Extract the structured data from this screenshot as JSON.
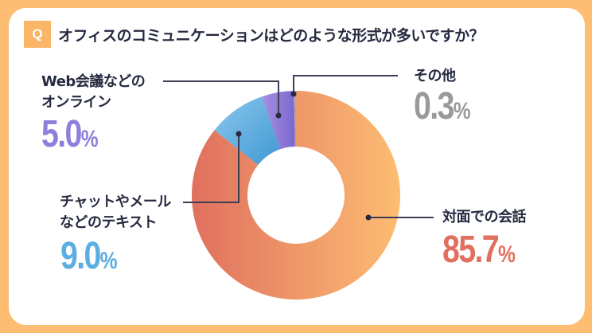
{
  "question": {
    "badge": "Q",
    "title": "オフィスのコミュニケーションはどのような形式が多いですか？"
  },
  "chart_data": {
    "type": "pie",
    "donut": true,
    "start": "top",
    "direction": "clockwise",
    "slices": [
      {
        "label_line1": "対面での会話",
        "label_line2": "",
        "value": 85.7,
        "value_text": "85.7",
        "color": "#e0705f",
        "color2": "#fdbd72",
        "text_color": "#e0705f"
      },
      {
        "label_line1": "チャットやメール",
        "label_line2": "などのテキスト",
        "value": 9.0,
        "value_text": "9.0",
        "color": "#4fa3d8",
        "color2": "#8cc8ee",
        "text_color": "#5aaee0"
      },
      {
        "label_line1": "Web会議などの",
        "label_line2": "オンライン",
        "value": 5.0,
        "value_text": "5.0",
        "color": "#8572d4",
        "color2": "#a88fe0",
        "text_color": "#8f7fdc"
      },
      {
        "label_line1": "その他",
        "label_line2": "",
        "value": 0.3,
        "value_text": "0.3",
        "color": "#a0a0a0",
        "color2": "#bdbdbd",
        "text_color": "#9a9a9a"
      }
    ],
    "unit": "%"
  }
}
